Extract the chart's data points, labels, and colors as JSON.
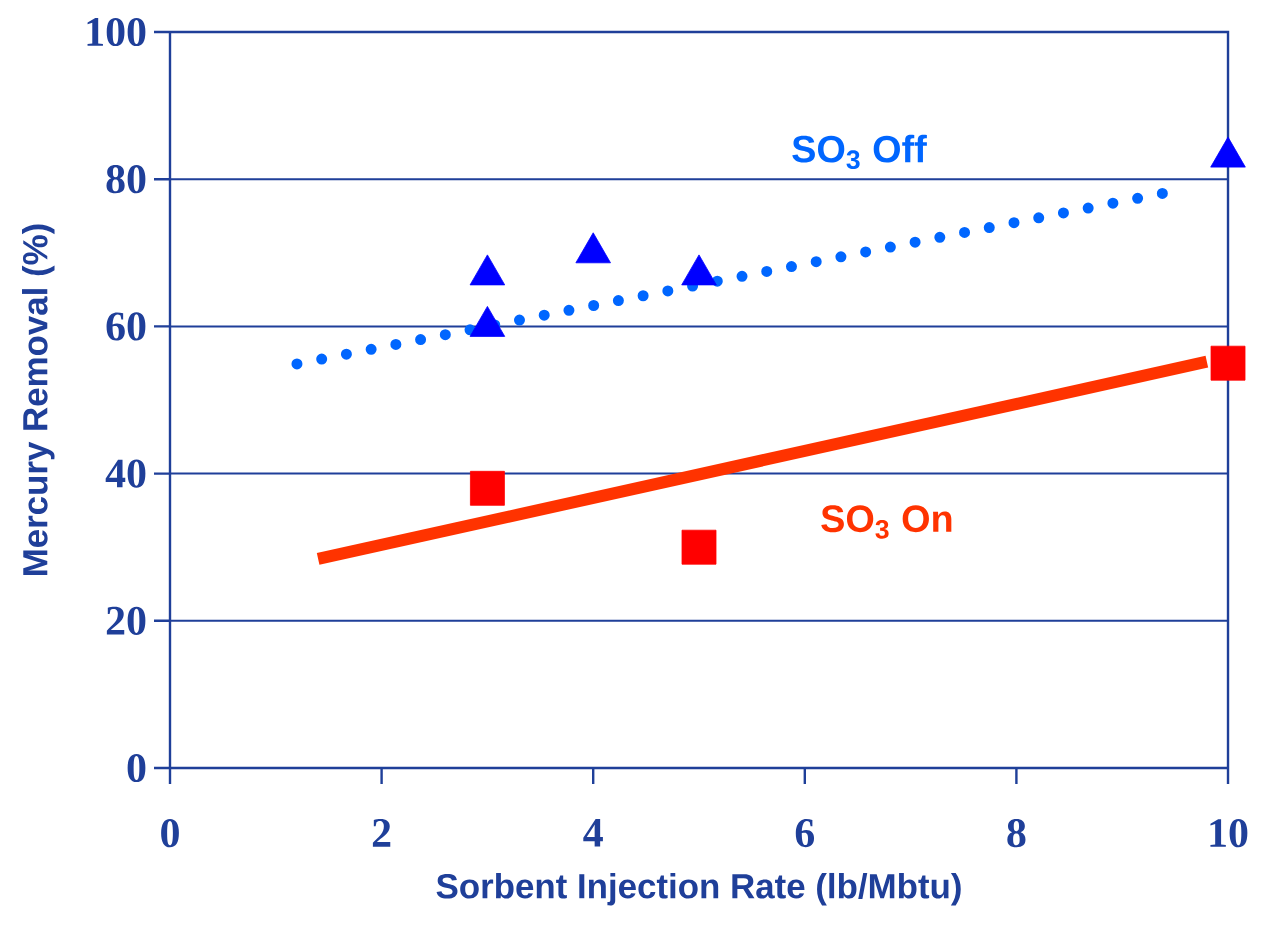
{
  "chart_data": {
    "type": "scatter",
    "xlabel": "Sorbent Injection Rate (lb/Mbtu)",
    "ylabel": "Mercury Removal (%)",
    "xlim": [
      0,
      10
    ],
    "ylim": [
      0,
      100
    ],
    "xticks": [
      0,
      2,
      4,
      6,
      8,
      10
    ],
    "yticks": [
      0,
      20,
      40,
      60,
      80,
      100
    ],
    "grid": "y",
    "series": [
      {
        "marker": "triangle",
        "color": "#0000ff",
        "x": [
          3,
          3,
          4,
          5,
          10
        ],
        "values": [
          67,
          60,
          70,
          67,
          83
        ]
      },
      {
        "type": "line",
        "name": "SO$_{3}$ Off",
        "marker": "none",
        "line_style": "dotted",
        "color": "#0066ff",
        "x": [
          1.2,
          9.5
        ],
        "values": [
          54.9,
          78.4
        ]
      },
      {
        "marker": "square",
        "color": "#ff0000",
        "x": [
          3,
          5,
          10
        ],
        "values": [
          38,
          30,
          55
        ]
      },
      {
        "type": "line",
        "name": "SO$_{3}$ On",
        "marker": "none",
        "line_style": "solid",
        "color": "#ff3300",
        "x": [
          1.4,
          9.8
        ],
        "values": [
          28.4,
          55.2
        ]
      }
    ]
  }
}
